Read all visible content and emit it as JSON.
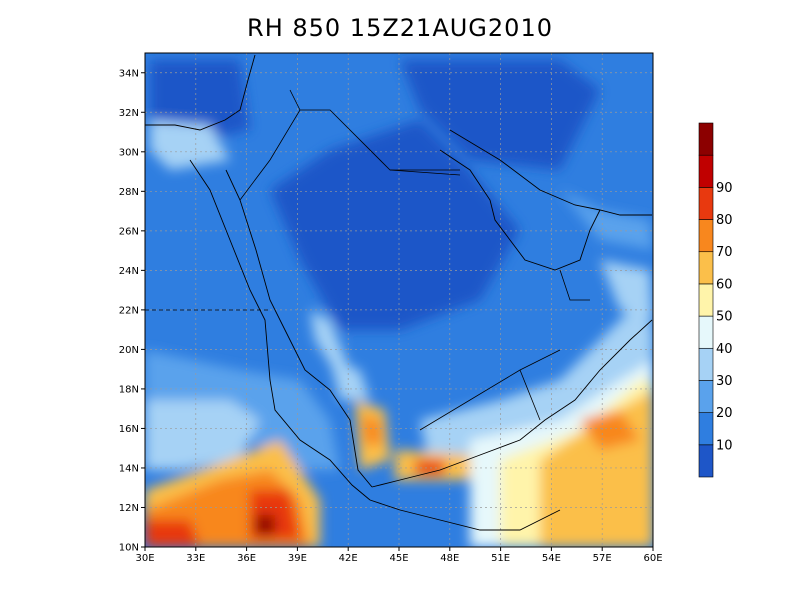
{
  "title": "RH 850 15Z21AUG2010",
  "map": {
    "lon_range": [
      30,
      60
    ],
    "lat_range": [
      10,
      35
    ],
    "lon_ticks": [
      "30E",
      "33E",
      "36E",
      "39E",
      "42E",
      "45E",
      "48E",
      "51E",
      "54E",
      "57E",
      "60E"
    ],
    "lat_ticks": [
      "10N",
      "12N",
      "14N",
      "16N",
      "18N",
      "20N",
      "22N",
      "24N",
      "26N",
      "28N",
      "30N",
      "32N",
      "34N"
    ],
    "gridlines": "dotted"
  },
  "colorbar": {
    "labels": [
      "10",
      "20",
      "30",
      "40",
      "50",
      "60",
      "70",
      "80",
      "90"
    ],
    "colors": [
      "#1e56c8",
      "#2f7ee0",
      "#5aa2ec",
      "#a6d2f5",
      "#e6f8fb",
      "#fff4aa",
      "#fbbf4a",
      "#f8871e",
      "#e8390f",
      "#c00000",
      "#8c0000"
    ]
  }
}
